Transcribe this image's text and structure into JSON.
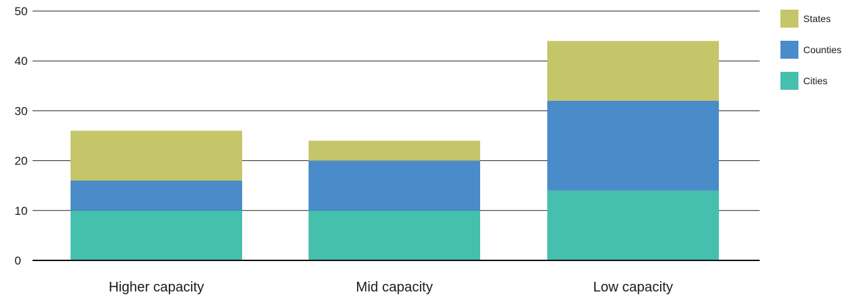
{
  "chart_data": {
    "type": "bar",
    "stacked": true,
    "categories": [
      "Higher capacity",
      "Mid capacity",
      "Low capacity"
    ],
    "series": [
      {
        "name": "Cities",
        "values": [
          10,
          10,
          14
        ],
        "color": "#45bfae"
      },
      {
        "name": "Counties",
        "values": [
          6,
          10,
          18
        ],
        "color": "#4a8bc9"
      },
      {
        "name": "States",
        "values": [
          10,
          4,
          12
        ],
        "color": "#c5c56a"
      }
    ],
    "legend_order": [
      "States",
      "Counties",
      "Cities"
    ],
    "ylim": [
      0,
      50
    ],
    "yticks": [
      0,
      10,
      20,
      30,
      40,
      50
    ],
    "grid": true,
    "legend_position": "top-right"
  }
}
